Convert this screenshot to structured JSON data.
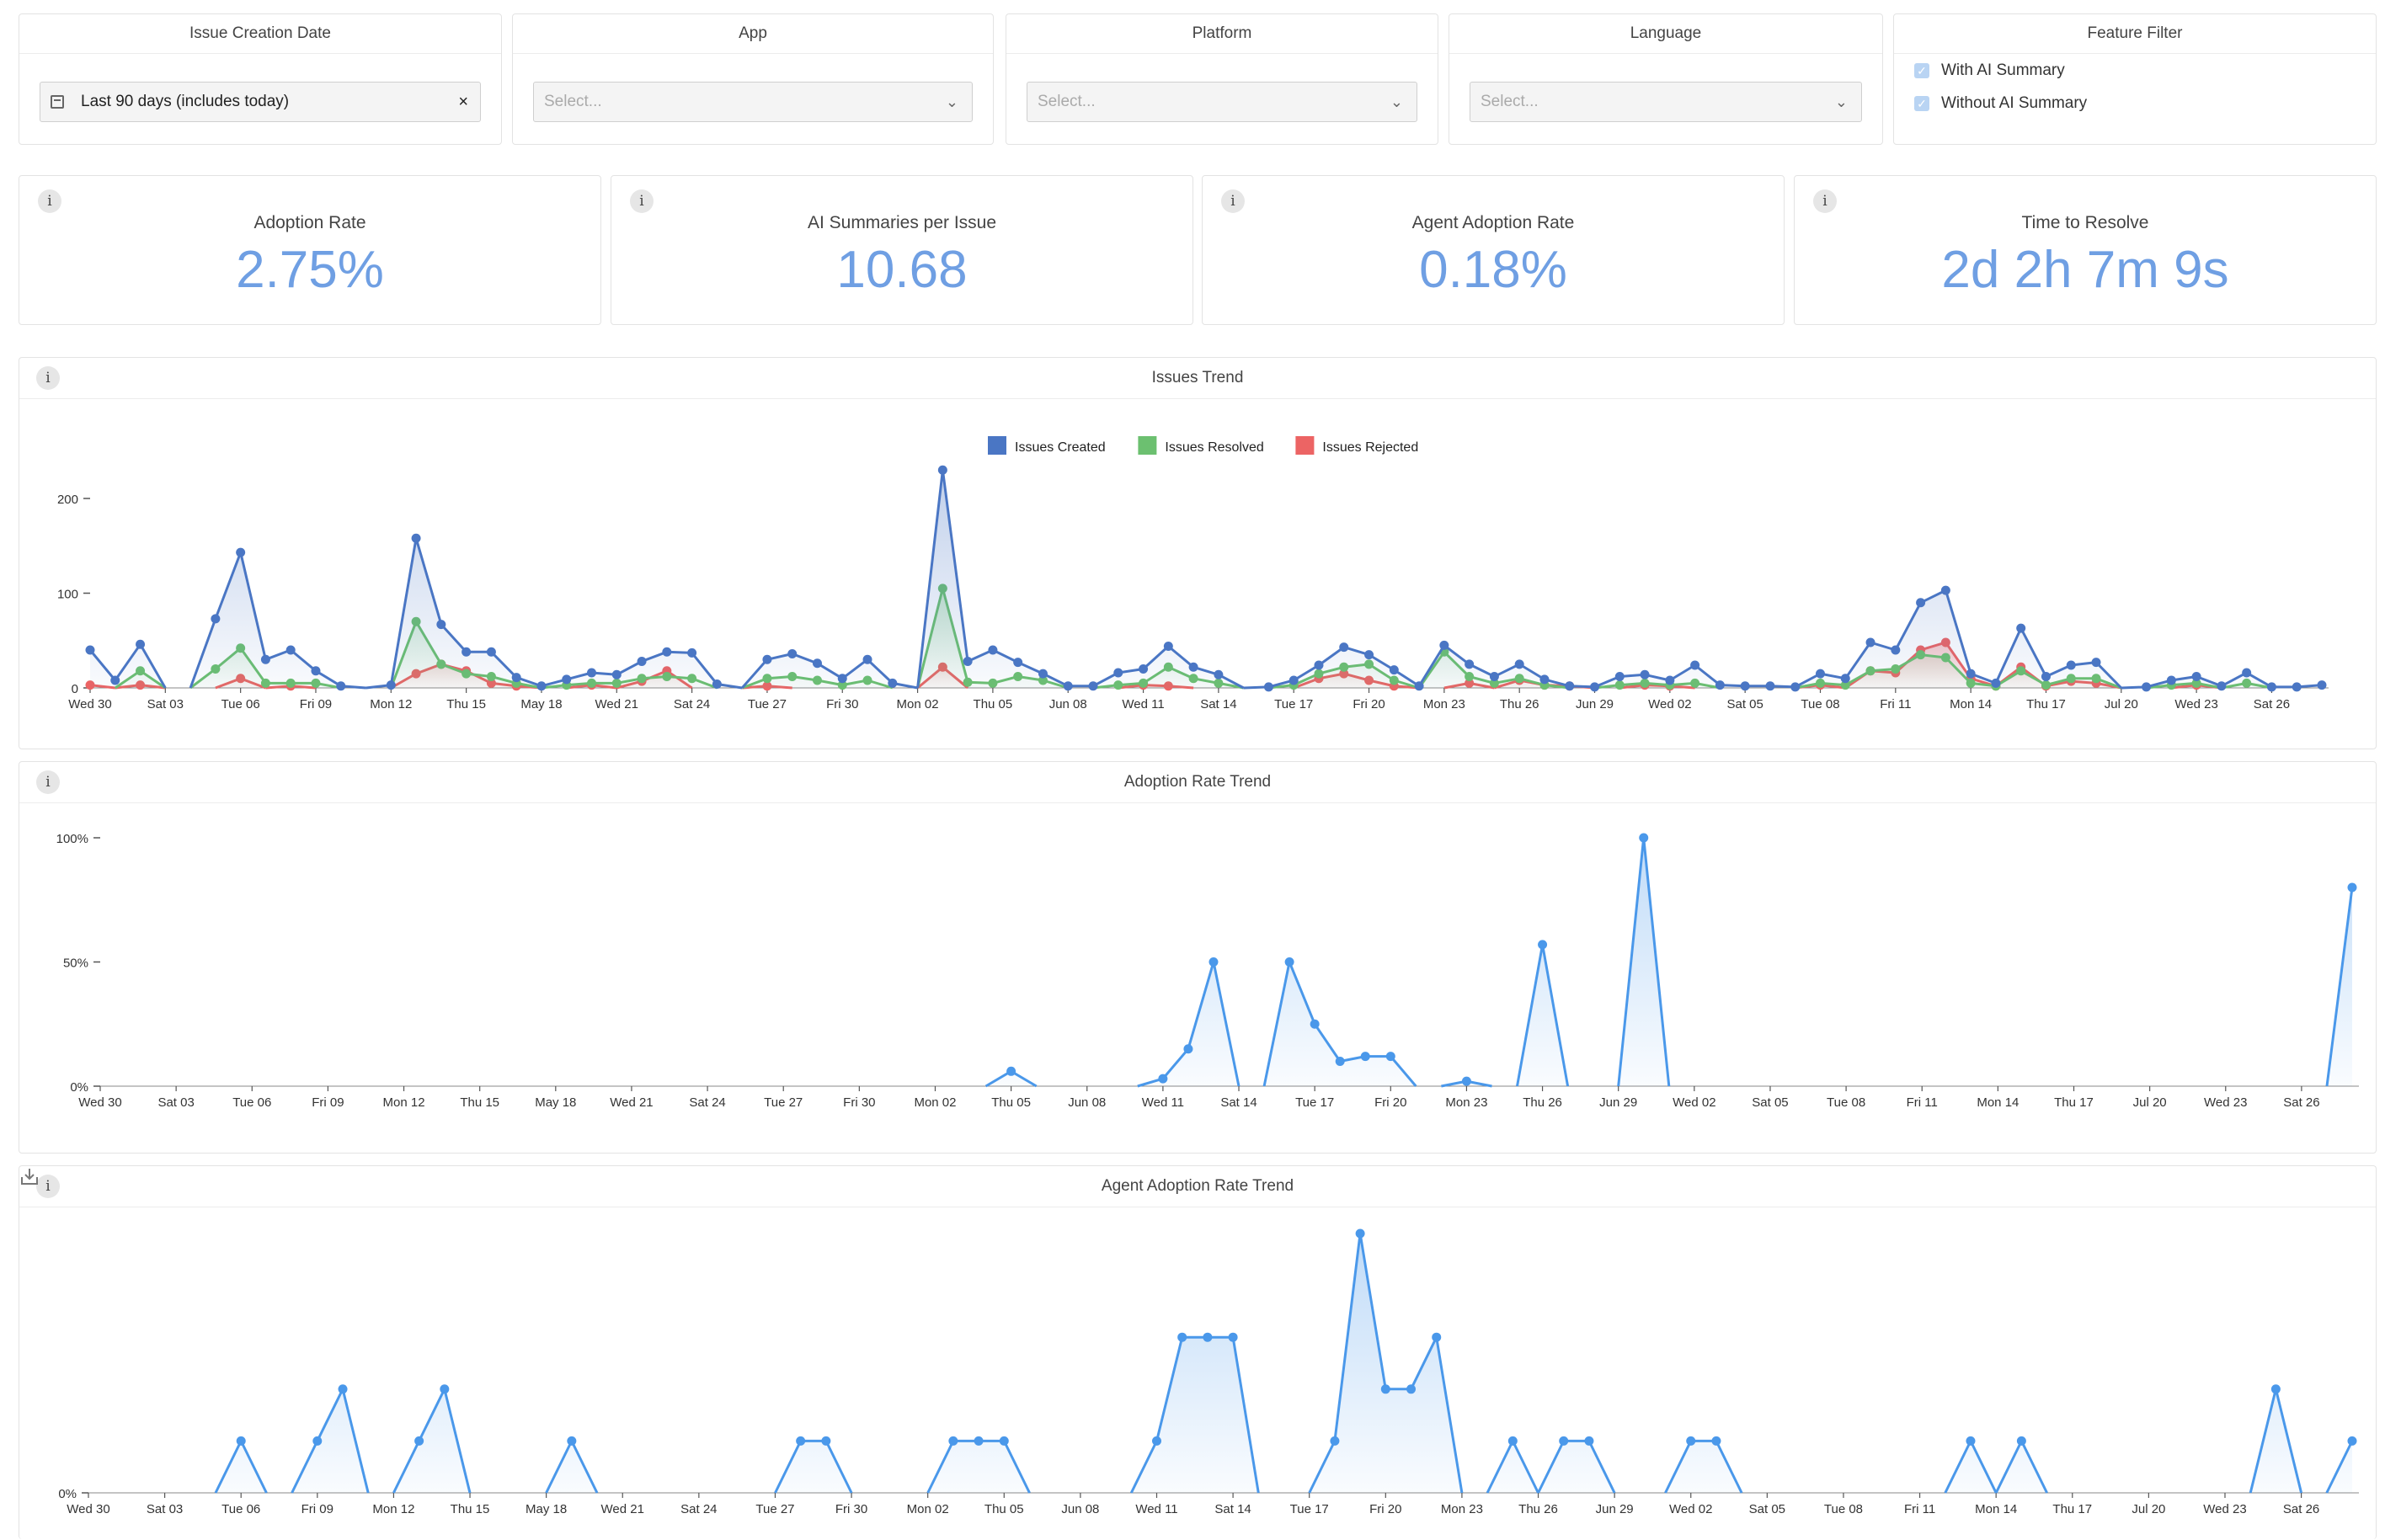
{
  "filters": {
    "date": {
      "title": "Issue Creation Date",
      "value": "Last 90 days (includes today)"
    },
    "app": {
      "title": "App",
      "placeholder": "Select..."
    },
    "platform": {
      "title": "Platform",
      "placeholder": "Select..."
    },
    "language": {
      "title": "Language",
      "placeholder": "Select..."
    },
    "feature": {
      "title": "Feature Filter",
      "options": [
        "With AI Summary",
        "Without AI Summary"
      ]
    }
  },
  "kpis": [
    {
      "label": "Adoption Rate",
      "value": "2.75%"
    },
    {
      "label": "AI Summaries per Issue",
      "value": "10.68"
    },
    {
      "label": "Agent Adoption Rate",
      "value": "0.18%"
    },
    {
      "label": "Time to Resolve",
      "value": "2d 2h 7m 9s"
    }
  ],
  "colors": {
    "created": "#4a76c4",
    "resolved": "#6cc070",
    "rejected": "#ec6464",
    "trend": "#4a98ea",
    "kpi": "#6f9fe3"
  },
  "icons": {
    "info": "info-icon",
    "download": "download-icon",
    "calendar": "calendar-icon",
    "clear": "close-icon",
    "dropdown": "chevron-down-icon",
    "checkbox": "checkbox-checked-icon"
  },
  "chart_data": [
    {
      "type": "area",
      "title": "Issues Trend",
      "xlabel": "",
      "ylabel": "",
      "ylim": [
        0,
        240
      ],
      "yticks": [
        0,
        100,
        200
      ],
      "tick_labels": [
        "Wed 30",
        "Sat 03",
        "Tue 06",
        "Fri 09",
        "Mon 12",
        "Thu 15",
        "May 18",
        "Wed 21",
        "Sat 24",
        "Tue 27",
        "Fri 30",
        "Mon 02",
        "Thu 05",
        "Jun 08",
        "Wed 11",
        "Sat 14",
        "Tue 17",
        "Fri 20",
        "Mon 23",
        "Thu 26",
        "Jun 29",
        "Wed 02",
        "Sat 05",
        "Tue 08",
        "Fri 11",
        "Mon 14",
        "Thu 17",
        "Jul 20",
        "Wed 23",
        "Sat 26"
      ],
      "legend": "top-center",
      "series": [
        {
          "name": "Issues Created",
          "values": [
            40,
            8,
            46,
            0,
            0,
            73,
            143,
            30,
            40,
            18,
            2,
            0,
            3,
            158,
            67,
            38,
            38,
            11,
            2,
            9,
            16,
            14,
            28,
            38,
            37,
            4,
            0,
            30,
            36,
            26,
            10,
            30,
            5,
            0,
            230,
            28,
            40,
            27,
            15,
            2,
            2,
            16,
            20,
            44,
            22,
            14,
            0,
            1,
            8,
            24,
            43,
            35,
            19,
            2,
            45,
            25,
            12,
            25,
            9,
            2,
            1,
            12,
            14,
            8,
            24,
            3,
            2,
            2,
            1,
            15,
            10,
            48,
            40,
            90,
            103,
            15,
            5,
            63,
            12,
            24,
            27,
            0,
            1,
            8,
            12,
            2,
            16,
            1,
            1,
            3
          ]
        },
        {
          "name": "Issues Resolved",
          "values": [
            0,
            0,
            18,
            0,
            0,
            20,
            42,
            5,
            5,
            5,
            0,
            0,
            0,
            70,
            25,
            15,
            12,
            5,
            0,
            3,
            5,
            5,
            10,
            12,
            10,
            0,
            0,
            10,
            12,
            8,
            3,
            8,
            0,
            0,
            105,
            6,
            5,
            12,
            8,
            0,
            0,
            3,
            5,
            22,
            10,
            5,
            0,
            0,
            3,
            15,
            22,
            25,
            8,
            0,
            38,
            12,
            5,
            10,
            3,
            0,
            0,
            3,
            5,
            3,
            5,
            0,
            0,
            0,
            0,
            5,
            3,
            18,
            20,
            35,
            32,
            5,
            2,
            18,
            3,
            10,
            10,
            0,
            0,
            3,
            5,
            0,
            5,
            0,
            0,
            0
          ]
        },
        {
          "name": "Issues Rejected",
          "values": [
            3,
            0,
            3,
            0,
            0,
            0,
            10,
            0,
            2,
            0,
            0,
            0,
            0,
            15,
            25,
            18,
            5,
            2,
            0,
            0,
            3,
            0,
            7,
            18,
            0,
            0,
            0,
            2,
            0,
            0,
            0,
            0,
            0,
            0,
            22,
            0,
            0,
            0,
            0,
            0,
            0,
            0,
            3,
            2,
            0,
            0,
            0,
            0,
            0,
            10,
            15,
            8,
            2,
            0,
            0,
            5,
            0,
            8,
            3,
            2,
            0,
            0,
            3,
            2,
            0,
            0,
            0,
            0,
            0,
            3,
            0,
            18,
            16,
            40,
            48,
            10,
            2,
            22,
            2,
            7,
            5,
            0,
            0,
            0,
            3,
            0,
            0,
            0,
            0,
            0
          ]
        }
      ]
    },
    {
      "type": "area",
      "title": "Adoption Rate Trend",
      "ylim": [
        0,
        100
      ],
      "yticks": [
        "0%",
        "50%",
        "100%"
      ],
      "tick_labels": [
        "Wed 30",
        "Sat 03",
        "Tue 06",
        "Fri 09",
        "Mon 12",
        "Thu 15",
        "May 18",
        "Wed 21",
        "Sat 24",
        "Tue 27",
        "Fri 30",
        "Mon 02",
        "Thu 05",
        "Jun 08",
        "Wed 11",
        "Sat 14",
        "Tue 17",
        "Fri 20",
        "Mon 23",
        "Thu 26",
        "Jun 29",
        "Wed 02",
        "Sat 05",
        "Tue 08",
        "Fri 11",
        "Mon 14",
        "Thu 17",
        "Jul 20",
        "Wed 23",
        "Sat 26"
      ],
      "series": [
        {
          "name": "",
          "values": [
            0,
            0,
            0,
            0,
            0,
            0,
            0,
            0,
            0,
            0,
            0,
            0,
            0,
            0,
            0,
            0,
            0,
            0,
            0,
            0,
            0,
            0,
            0,
            0,
            0,
            0,
            0,
            0,
            0,
            0,
            0,
            0,
            0,
            0,
            0,
            0,
            6,
            0,
            0,
            0,
            0,
            0,
            3,
            15,
            50,
            0,
            0,
            50,
            25,
            10,
            12,
            12,
            0,
            0,
            2,
            0,
            0,
            57,
            0,
            0,
            0,
            100,
            0,
            0,
            0,
            0,
            0,
            0,
            0,
            0,
            0,
            0,
            0,
            0,
            0,
            0,
            0,
            0,
            0,
            0,
            0,
            0,
            0,
            0,
            0,
            0,
            0,
            0,
            0,
            80
          ]
        }
      ]
    },
    {
      "type": "area",
      "title": "Agent Adoption Rate Trend",
      "yticks": [
        "0%"
      ],
      "tick_labels": [
        "Wed 30",
        "Sat 03",
        "Tue 06",
        "Fri 09",
        "Mon 12",
        "Thu 15",
        "May 18",
        "Wed 21",
        "Sat 24",
        "Tue 27",
        "Fri 30",
        "Mon 02",
        "Thu 05",
        "Jun 08",
        "Wed 11",
        "Sat 14",
        "Tue 17",
        "Fri 20",
        "Mon 23",
        "Thu 26",
        "Jun 29",
        "Wed 02",
        "Sat 05",
        "Tue 08",
        "Fri 11",
        "Mon 14",
        "Thu 17",
        "Jul 20",
        "Wed 23",
        "Sat 26"
      ],
      "series": [
        {
          "name": "",
          "values": [
            0,
            0,
            0,
            0,
            0,
            0,
            20,
            0,
            0,
            20,
            40,
            0,
            0,
            20,
            40,
            0,
            0,
            0,
            0,
            20,
            0,
            0,
            0,
            0,
            0,
            0,
            0,
            0,
            20,
            20,
            0,
            0,
            0,
            0,
            20,
            20,
            20,
            0,
            0,
            0,
            0,
            0,
            20,
            60,
            60,
            60,
            0,
            0,
            0,
            20,
            100,
            40,
            40,
            60,
            0,
            0,
            20,
            0,
            20,
            20,
            0,
            0,
            0,
            20,
            20,
            0,
            0,
            0,
            0,
            0,
            0,
            0,
            0,
            0,
            20,
            0,
            20,
            0,
            0,
            0,
            0,
            0,
            0,
            0,
            0,
            0,
            40,
            0,
            0,
            20
          ]
        }
      ]
    }
  ]
}
